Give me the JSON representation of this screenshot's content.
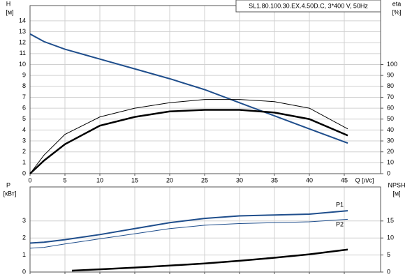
{
  "chart_data": [
    {
      "type": "line",
      "title": "SL1.80.100.30.EX.4.50D.C, 3*400 V, 50Hz",
      "ylabel": "H",
      "yunit": "[м]",
      "y2label": "eta",
      "y2unit": "[%]",
      "xlabel": "Q [л/с]",
      "x": [
        0,
        2,
        5,
        10,
        15,
        20,
        25,
        30,
        35,
        40,
        45.5
      ],
      "xlim": [
        0,
        50.2
      ],
      "xticks": [
        0,
        5,
        10,
        15,
        20,
        25,
        30,
        35,
        40,
        45
      ],
      "ylim": [
        0,
        15.4
      ],
      "yticks": [
        0,
        1,
        2,
        3,
        4,
        5,
        6,
        7,
        8,
        9,
        10,
        11,
        12,
        13,
        14
      ],
      "y2lim": [
        0,
        154
      ],
      "y2ticks": [
        0,
        10,
        20,
        30,
        40,
        50,
        60,
        70,
        80,
        90,
        100
      ],
      "grid": true,
      "series": [
        {
          "color": "#1f4e8c",
          "line_width": 2,
          "values": [
            12.8,
            12.1,
            11.4,
            10.5,
            9.6,
            8.7,
            7.7,
            6.5,
            5.3,
            4.1,
            2.8
          ]
        },
        {
          "color": "#000000",
          "line_width": 1,
          "axis": "y2",
          "values": [
            0,
            17,
            36,
            52,
            60,
            65,
            68,
            68,
            66,
            60,
            41
          ]
        },
        {
          "color": "#000000",
          "line_width": 2.5,
          "axis": "y2",
          "values": [
            0,
            12,
            27,
            44,
            52,
            57,
            58.5,
            58.5,
            56,
            50,
            35
          ]
        }
      ]
    },
    {
      "type": "line",
      "ylabel": "P",
      "yunit": "[кВт]",
      "y2label": "NPSH",
      "y2unit": "[м]",
      "xlim": [
        0,
        50.2
      ],
      "ylim": [
        0,
        5
      ],
      "yticks": [
        0,
        1,
        2,
        3
      ],
      "y2lim": [
        0,
        25
      ],
      "y2ticks": [
        0,
        5,
        10,
        15
      ],
      "grid": true,
      "series": [
        {
          "name": "P1",
          "color": "#1f4e8c",
          "line_width": 2,
          "x": [
            0,
            2,
            5,
            10,
            15,
            20,
            25,
            30,
            35,
            40,
            45.5
          ],
          "values": [
            1.7,
            1.75,
            1.9,
            2.2,
            2.55,
            2.9,
            3.15,
            3.3,
            3.35,
            3.4,
            3.6
          ]
        },
        {
          "name": "P2",
          "color": "#1f4e8c",
          "line_width": 1,
          "x": [
            0,
            2,
            5,
            10,
            15,
            20,
            25,
            30,
            35,
            40,
            45.5
          ],
          "values": [
            1.4,
            1.45,
            1.65,
            1.95,
            2.25,
            2.55,
            2.75,
            2.85,
            2.9,
            2.95,
            3.1
          ]
        },
        {
          "color": "#000000",
          "line_width": 2.5,
          "axis": "y2",
          "x": [
            6,
            10,
            15,
            20,
            25,
            30,
            35,
            40,
            45.5
          ],
          "values": [
            0.4,
            0.8,
            1.3,
            1.9,
            2.5,
            3.3,
            4.2,
            5.2,
            6.6
          ]
        }
      ]
    }
  ]
}
